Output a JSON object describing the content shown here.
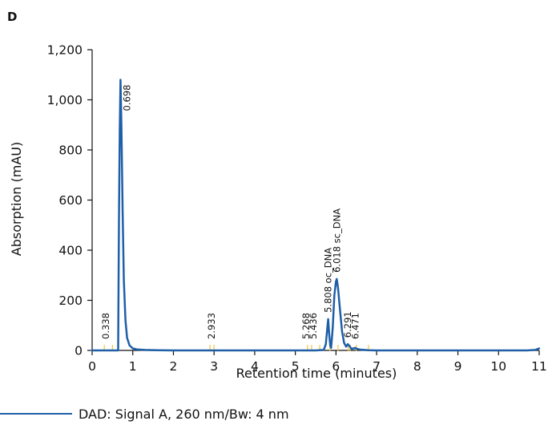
{
  "panel_label": "D",
  "colors": {
    "trace": "#1f5fa8",
    "event_marks": "#f2c94c",
    "axis": "#111111"
  },
  "chart_data": {
    "type": "line",
    "xlabel": "Retention time (minutes)",
    "ylabel": "Absorption (mAU)",
    "xlim": [
      0,
      11
    ],
    "ylim": [
      0,
      1200
    ],
    "x_ticks": [
      0,
      1,
      2,
      3,
      4,
      5,
      6,
      7,
      8,
      9,
      10,
      11
    ],
    "y_ticks": [
      0,
      200,
      400,
      600,
      800,
      1000,
      1200
    ],
    "x_tick_labels": [
      "0",
      "1",
      "2",
      "3",
      "4",
      "5",
      "6",
      "7",
      "8",
      "9",
      "10",
      "11"
    ],
    "y_tick_labels": [
      "0",
      "200",
      "400",
      "600",
      "800",
      "1,000",
      "1,200"
    ],
    "grid": false,
    "legend": "bottom-left",
    "series": [
      {
        "name": "DAD: Signal A, 260 nm/Bw: 4 nm",
        "x": [
          0,
          0.6,
          0.64,
          0.66,
          0.68,
          0.698,
          0.72,
          0.75,
          0.78,
          0.82,
          0.86,
          0.92,
          1.0,
          1.1,
          1.3,
          1.6,
          2.0,
          3.0,
          4.0,
          5.0,
          5.5,
          5.7,
          5.75,
          5.79,
          5.808,
          5.83,
          5.86,
          5.88,
          5.92,
          5.96,
          6.0,
          6.018,
          6.05,
          6.1,
          6.15,
          6.2,
          6.25,
          6.291,
          6.33,
          6.38,
          6.43,
          6.471,
          6.52,
          6.6,
          6.8,
          7.0,
          8.0,
          9.0,
          10.0,
          10.7,
          10.9,
          11.0
        ],
        "y": [
          0,
          0,
          0,
          520,
          880,
          1080,
          900,
          560,
          280,
          120,
          50,
          20,
          8,
          4,
          2,
          1,
          0,
          0,
          0,
          0,
          0,
          2,
          25,
          95,
          125,
          70,
          18,
          10,
          90,
          220,
          275,
          285,
          250,
          160,
          75,
          30,
          15,
          25,
          18,
          6,
          8,
          10,
          6,
          3,
          1,
          0,
          0,
          0,
          0,
          0,
          2,
          8
        ]
      }
    ],
    "peak_labels": [
      {
        "x": 0.338,
        "text": "0.338"
      },
      {
        "x": 0.698,
        "text": "0.698"
      },
      {
        "x": 2.933,
        "text": "2.933"
      },
      {
        "x": 5.268,
        "text": "5.268"
      },
      {
        "x": 5.436,
        "text": "5.436"
      },
      {
        "x": 5.808,
        "text": "5.808 oc_DNA"
      },
      {
        "x": 6.018,
        "text": "6.018 sc_DNA"
      },
      {
        "x": 6.291,
        "text": "6.291"
      },
      {
        "x": 6.471,
        "text": "6.471"
      }
    ],
    "event_marks_x": [
      0.3,
      0.5,
      2.9,
      3.0,
      5.3,
      5.4,
      5.6,
      5.85,
      6.05,
      6.3,
      6.35,
      6.5,
      6.8
    ]
  }
}
